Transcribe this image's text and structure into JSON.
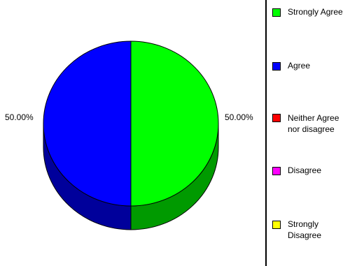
{
  "chart_data": {
    "type": "pie",
    "slices": [
      {
        "label": "Strongly Agree",
        "value": 50.0,
        "display": "50.00%",
        "color": "#00ff00",
        "side_color": "#009a00"
      },
      {
        "label": "Agree",
        "value": 50.0,
        "display": "50.00%",
        "color": "#0000ff",
        "side_color": "#00009b"
      },
      {
        "label": "Neither Agree nor disagree",
        "value": 0,
        "display": "",
        "color": "#ff0000",
        "side_color": "#9b0000"
      },
      {
        "label": "Disagree",
        "value": 0,
        "display": "",
        "color": "#ff00ff",
        "side_color": "#9b009b"
      },
      {
        "label": "Strongly Disagree",
        "value": 0,
        "display": "",
        "color": "#ffff00",
        "side_color": "#9b9b00"
      }
    ],
    "style": "3d-pie",
    "legend_position": "right"
  },
  "legend": {
    "items": [
      {
        "label": "Strongly Agree",
        "color": "#00ff00"
      },
      {
        "label": "Agree",
        "color": "#0000ff"
      },
      {
        "label": "Neither Agree nor disagree",
        "color": "#ff0000"
      },
      {
        "label": "Disagree",
        "color": "#ff00ff"
      },
      {
        "label": "Strongly Disagree",
        "color": "#ffff00"
      }
    ]
  },
  "labels": {
    "left_pct": "50.00%",
    "right_pct": "50.00%"
  }
}
